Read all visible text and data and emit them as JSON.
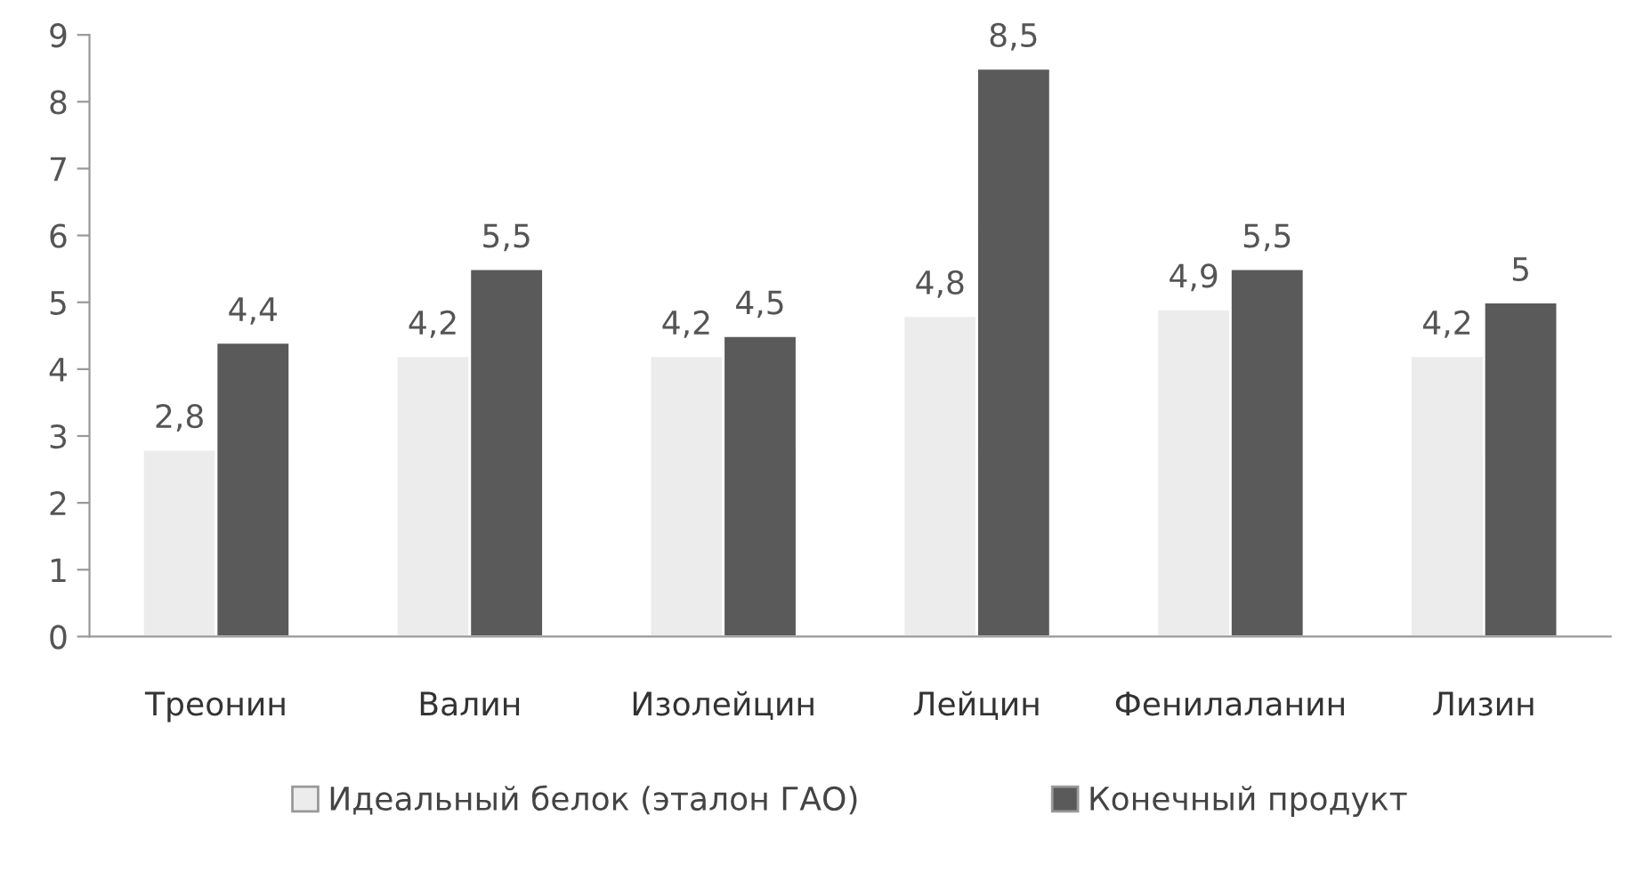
{
  "chart_data": {
    "type": "bar",
    "categories": [
      "Треонин",
      "Валин",
      "Изолейцин",
      "Лейцин",
      "Фенилаланин",
      "Лизин"
    ],
    "series": [
      {
        "name": "Идеальный белок (эталон ГАО)",
        "color": "#ececec",
        "values": [
          2.8,
          4.2,
          4.2,
          4.8,
          4.9,
          4.2
        ],
        "value_labels": [
          "2,8",
          "4,2",
          "4,2",
          "4,8",
          "4,9",
          "4,2"
        ]
      },
      {
        "name": "Конечный продукт",
        "color": "#5a5a5a",
        "values": [
          4.4,
          5.5,
          4.5,
          8.5,
          5.5,
          5
        ],
        "value_labels": [
          "4,4",
          "5,5",
          "4,5",
          "8,5",
          "5,5",
          "5"
        ]
      }
    ],
    "ylim": [
      0,
      9
    ],
    "yticks": [
      0,
      1,
      2,
      3,
      4,
      5,
      6,
      7,
      8,
      9
    ],
    "grid": false,
    "legend": "bottom"
  }
}
